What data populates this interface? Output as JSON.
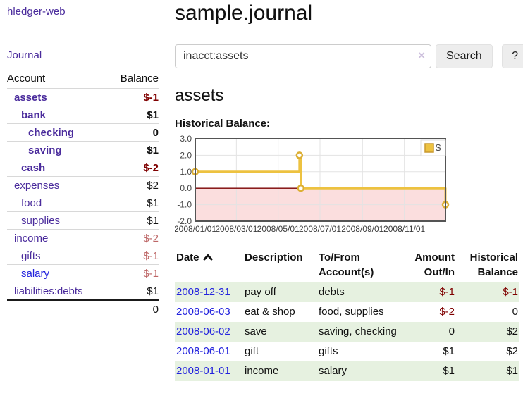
{
  "app": {
    "title": "hledger-web",
    "nav_journal": "Journal"
  },
  "colors": {
    "link_purple": "#4a2b9c",
    "link_blue": "#2323dd",
    "negative_strong": "#7f0000",
    "negative_muted": "#bd6666",
    "row_highlight_green": "#e6f1e0",
    "chart_series_yellow": "#edc240"
  },
  "sidebar": {
    "headers": {
      "account": "Account",
      "balance": "Balance"
    },
    "accounts": [
      {
        "name": "assets",
        "indent": 1,
        "emph": true,
        "link": "purple",
        "balance": "$-1",
        "tone": "neg"
      },
      {
        "name": "bank",
        "indent": 2,
        "emph": true,
        "link": "purple",
        "balance": "$1",
        "tone": "normal"
      },
      {
        "name": "checking",
        "indent": 3,
        "emph": true,
        "link": "purple",
        "balance": "0",
        "tone": "normal"
      },
      {
        "name": "saving",
        "indent": 3,
        "emph": true,
        "link": "purple",
        "balance": "$1",
        "tone": "normal"
      },
      {
        "name": "cash",
        "indent": 2,
        "emph": true,
        "link": "purple",
        "balance": "$-2",
        "tone": "neg"
      },
      {
        "name": "expenses",
        "indent": 1,
        "emph": false,
        "link": "purple",
        "balance": "$2",
        "tone": "normal"
      },
      {
        "name": "food",
        "indent": 2,
        "emph": false,
        "link": "purple",
        "balance": "$1",
        "tone": "normal"
      },
      {
        "name": "supplies",
        "indent": 2,
        "emph": false,
        "link": "purple",
        "balance": "$1",
        "tone": "normal"
      },
      {
        "name": "income",
        "indent": 1,
        "emph": false,
        "link": "purple",
        "balance": "$-2",
        "tone": "neg-muted"
      },
      {
        "name": "gifts",
        "indent": 2,
        "emph": false,
        "link": "purple",
        "balance": "$-1",
        "tone": "neg-muted"
      },
      {
        "name": "salary",
        "indent": 2,
        "emph": false,
        "link": "blue",
        "balance": "$-1",
        "tone": "neg-muted"
      },
      {
        "name": "liabilities:debts",
        "indent": 1,
        "emph": false,
        "link": "purple",
        "balance": "$1",
        "tone": "normal"
      }
    ],
    "total": "0"
  },
  "header": {
    "title": "sample.journal"
  },
  "search": {
    "value": "inacct:assets",
    "clear_icon": "×",
    "search_label": "Search",
    "help_label": "?"
  },
  "account_page": {
    "title": "assets",
    "chart_label": "Historical Balance:"
  },
  "chart_data": {
    "type": "line",
    "step": true,
    "title": "Historical Balance",
    "x_range": [
      "2008-01-01",
      "2008-12-31"
    ],
    "ylim": [
      -2,
      3
    ],
    "y_ticks": [
      "3.0",
      "2.0",
      "1.0",
      "0.0",
      "-1.0",
      "-2.0"
    ],
    "x_ticks": [
      {
        "label": "2008/01/01",
        "date": "2008-01-01"
      },
      {
        "label": "2008/03/01",
        "date": "2008-03-01"
      },
      {
        "label": "2008/05/01",
        "date": "2008-05-01"
      },
      {
        "label": "2008/07/01",
        "date": "2008-07-01"
      },
      {
        "label": "2008/09/01",
        "date": "2008-09-01"
      },
      {
        "label": "2008/11/01",
        "date": "2008-11-01"
      }
    ],
    "series": [
      {
        "name": "$",
        "color": "#edc240",
        "point_stroke": "#dcaf34",
        "points": [
          {
            "date": "2008-01-01",
            "value": 1
          },
          {
            "date": "2008-06-01",
            "value": 2
          },
          {
            "date": "2008-06-03",
            "value": 0
          },
          {
            "date": "2008-12-31",
            "value": -1
          }
        ]
      }
    ],
    "legend": {
      "label": "$",
      "position": "top-right"
    },
    "grid": true,
    "negative_region_color": "#fbdede",
    "zero_line_color": "#7a0000",
    "border_color": "#545454",
    "gridline_color": "#e3e3e3"
  },
  "register": {
    "headers": {
      "date": "Date",
      "description": "Description",
      "accounts": "To/From Account(s)",
      "amount": "Amount Out/In",
      "balance": "Historical Balance"
    },
    "rows": [
      {
        "date": "2008-12-31",
        "description": "pay off",
        "accounts": "debts",
        "amount": "$-1",
        "amount_tone": "neg",
        "balance": "$-1",
        "balance_tone": "neg"
      },
      {
        "date": "2008-06-03",
        "description": "eat & shop",
        "accounts": "food, supplies",
        "amount": "$-2",
        "amount_tone": "neg",
        "balance": "0",
        "balance_tone": "normal"
      },
      {
        "date": "2008-06-02",
        "description": "save",
        "accounts": "saving, checking",
        "amount": "0",
        "amount_tone": "normal",
        "balance": "$2",
        "balance_tone": "normal"
      },
      {
        "date": "2008-06-01",
        "description": "gift",
        "accounts": "gifts",
        "amount": "$1",
        "amount_tone": "normal",
        "balance": "$2",
        "balance_tone": "normal"
      },
      {
        "date": "2008-01-01",
        "description": "income",
        "accounts": "salary",
        "amount": "$1",
        "amount_tone": "normal",
        "balance": "$1",
        "balance_tone": "normal"
      }
    ]
  }
}
